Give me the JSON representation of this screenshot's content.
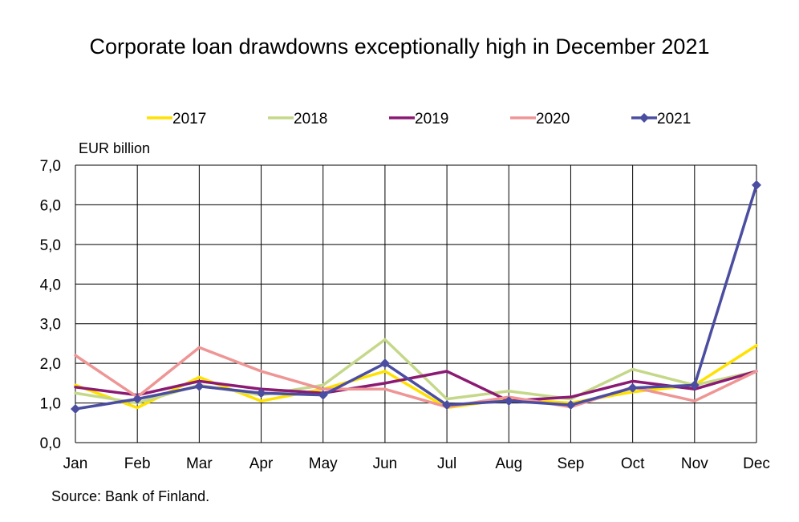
{
  "chart_data": {
    "type": "line",
    "title": "Corporate loan drawdowns exceptionally high in December 2021",
    "ylabel": "EUR billion",
    "xlabel": "",
    "source": "Source: Bank of Finland.",
    "categories": [
      "Jan",
      "Feb",
      "Mar",
      "Apr",
      "May",
      "Jun",
      "Jul",
      "Aug",
      "Sep",
      "Oct",
      "Nov",
      "Dec"
    ],
    "ylim": [
      0,
      7
    ],
    "yticks": [
      "0,0",
      "1,0",
      "2,0",
      "3,0",
      "4,0",
      "5,0",
      "6,0",
      "7,0"
    ],
    "grid": true,
    "legend_position": "top",
    "series": [
      {
        "name": "2017",
        "color": "#FFE100",
        "marker": "none",
        "values": [
          1.45,
          0.88,
          1.65,
          1.05,
          1.35,
          1.8,
          0.88,
          1.1,
          1.0,
          1.28,
          1.45,
          2.45
        ]
      },
      {
        "name": "2018",
        "color": "#C5D88A",
        "marker": "none",
        "values": [
          1.25,
          1.0,
          1.45,
          1.2,
          1.45,
          2.6,
          1.1,
          1.3,
          1.1,
          1.85,
          1.45,
          1.8
        ]
      },
      {
        "name": "2019",
        "color": "#8B1A73",
        "marker": "none",
        "values": [
          1.4,
          1.2,
          1.55,
          1.35,
          1.25,
          1.5,
          1.8,
          1.05,
          1.15,
          1.55,
          1.35,
          1.8
        ]
      },
      {
        "name": "2020",
        "color": "#EE9595",
        "marker": "none",
        "values": [
          2.2,
          1.15,
          2.4,
          1.8,
          1.35,
          1.35,
          0.9,
          1.15,
          0.9,
          1.4,
          1.05,
          1.8
        ]
      },
      {
        "name": "2021",
        "color": "#4B4EA0",
        "marker": "diamond",
        "values": [
          0.85,
          1.1,
          1.42,
          1.25,
          1.2,
          2.0,
          0.95,
          1.05,
          0.95,
          1.38,
          1.45,
          6.5
        ]
      }
    ]
  }
}
